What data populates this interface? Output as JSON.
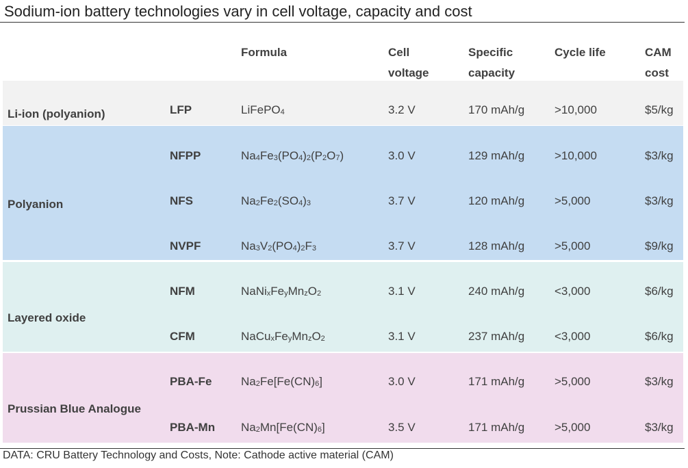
{
  "title": "Sodium-ion battery technologies vary in cell voltage, capacity and cost",
  "headers": {
    "formula": "Formula",
    "voltage_1": "Cell",
    "voltage_2": "voltage",
    "capacity_1": "Specific",
    "capacity_2": "capacity",
    "cycle": "Cycle life",
    "cost_1": "CAM",
    "cost_2": "cost"
  },
  "footer": "DATA: CRU Battery Technology and Costs, Note: Cathode active material (CAM)",
  "colors": {
    "li_ion": "#f2f2f2",
    "polyanion": "#c5dcf2",
    "layered_oxide": "#dff0f0",
    "prussian_blue": "#f1dced",
    "text": "#404040"
  },
  "chart_data": {
    "type": "table",
    "title": "Sodium-ion battery technologies vary in cell voltage, capacity and cost",
    "columns": [
      "",
      "",
      "Formula",
      "Cell voltage",
      "Specific capacity",
      "Cycle life",
      "CAM cost"
    ],
    "groups": [
      {
        "label": "Li-ion (polyanion)",
        "color": "#f2f2f2",
        "rows": [
          {
            "code": "LFP",
            "formula": [
              [
                "LiFePO",
                0
              ],
              [
                "4",
                1
              ]
            ],
            "voltage": "3.2 V",
            "capacity": "170 mAh/g",
            "cycle": ">10,000",
            "cost": "$5/kg"
          }
        ]
      },
      {
        "label": "Polyanion",
        "color": "#c5dcf2",
        "rows": [
          {
            "code": "NFPP",
            "formula": [
              [
                "Na",
                0
              ],
              [
                "4",
                1
              ],
              [
                "Fe",
                0
              ],
              [
                "3",
                1
              ],
              [
                "(PO",
                0
              ],
              [
                "4",
                1
              ],
              [
                ")",
                0
              ],
              [
                "2",
                1
              ],
              [
                "(P",
                0
              ],
              [
                "2",
                1
              ],
              [
                "O",
                0
              ],
              [
                "7",
                1
              ],
              [
                ")",
                0
              ]
            ],
            "voltage": "3.0 V",
            "capacity": "129 mAh/g",
            "cycle": ">10,000",
            "cost": "$3/kg"
          },
          {
            "code": "NFS",
            "formula": [
              [
                "Na",
                0
              ],
              [
                "2",
                1
              ],
              [
                "Fe",
                0
              ],
              [
                "2",
                1
              ],
              [
                "(SO",
                0
              ],
              [
                "4",
                1
              ],
              [
                ")",
                0
              ],
              [
                "3",
                1
              ]
            ],
            "voltage": "3.7 V",
            "capacity": "120 mAh/g",
            "cycle": ">5,000",
            "cost": "$3/kg"
          },
          {
            "code": "NVPF",
            "formula": [
              [
                "Na",
                0
              ],
              [
                "3",
                1
              ],
              [
                "V",
                0
              ],
              [
                "2",
                1
              ],
              [
                "(PO",
                0
              ],
              [
                "4",
                1
              ],
              [
                ")",
                0
              ],
              [
                "2",
                1
              ],
              [
                "F",
                0
              ],
              [
                "3",
                1
              ]
            ],
            "voltage": "3.7 V",
            "capacity": "128 mAh/g",
            "cycle": ">5,000",
            "cost": "$9/kg"
          }
        ]
      },
      {
        "label": "Layered oxide",
        "color": "#dff0f0",
        "rows": [
          {
            "code": "NFM",
            "formula": [
              [
                "NaNi",
                0
              ],
              [
                "x",
                1
              ],
              [
                "Fe",
                0
              ],
              [
                "y",
                1
              ],
              [
                "Mn",
                0
              ],
              [
                "z",
                1
              ],
              [
                "O",
                0
              ],
              [
                "2",
                1
              ]
            ],
            "voltage": "3.1 V",
            "capacity": "240 mAh/g",
            "cycle": "<3,000",
            "cost": "$6/kg"
          },
          {
            "code": "CFM",
            "formula": [
              [
                "NaCu",
                0
              ],
              [
                "x",
                1
              ],
              [
                "Fe",
                0
              ],
              [
                "y",
                1
              ],
              [
                "Mn",
                0
              ],
              [
                "z",
                1
              ],
              [
                "O",
                0
              ],
              [
                "2",
                1
              ]
            ],
            "voltage": "3.1 V",
            "capacity": "237 mAh/g",
            "cycle": "<3,000",
            "cost": "$6/kg"
          }
        ]
      },
      {
        "label": "Prussian Blue Analogue",
        "color": "#f1dced",
        "rows": [
          {
            "code": "PBA-Fe",
            "formula": [
              [
                "Na",
                0
              ],
              [
                "2",
                1
              ],
              [
                "Fe[Fe(CN)",
                0
              ],
              [
                "6",
                1
              ],
              [
                "]",
                0
              ]
            ],
            "voltage": "3.0 V",
            "capacity": "171 mAh/g",
            "cycle": ">5,000",
            "cost": "$3/kg"
          },
          {
            "code": "PBA-Mn",
            "formula": [
              [
                "Na",
                0
              ],
              [
                "2",
                1
              ],
              [
                "Mn[Fe(CN)",
                0
              ],
              [
                "6",
                1
              ],
              [
                "]",
                0
              ]
            ],
            "voltage": "3.5 V",
            "capacity": "171 mAh/g",
            "cycle": ">5,000",
            "cost": "$3/kg"
          }
        ]
      }
    ]
  }
}
